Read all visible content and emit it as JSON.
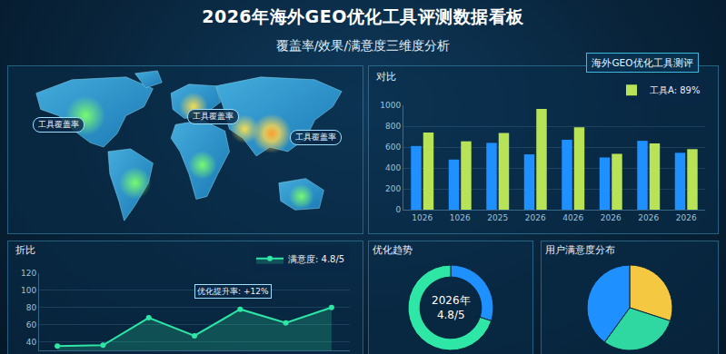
{
  "header": {
    "title": "2026年海外GEO优化工具评测数据看板",
    "subtitle": "覆盖率/效果/满意度三维度分析",
    "tag": "海外GEO优化工具测评"
  },
  "map": {
    "labels": [
      "工具覆盖率",
      "工具覆盖率",
      "工具覆盖率"
    ]
  },
  "chart_data": [
    {
      "type": "bar",
      "title": "对比",
      "categories": [
        "1026",
        "1026",
        "2025",
        "2026",
        "4026",
        "2026",
        "2026",
        "2026"
      ],
      "series": [
        {
          "color": "#1e90ff",
          "values": [
            610,
            480,
            640,
            530,
            670,
            500,
            660,
            545
          ]
        },
        {
          "name": "工具A: 89%",
          "color": "#b8e356",
          "values": [
            740,
            655,
            735,
            965,
            790,
            535,
            635,
            580
          ]
        }
      ],
      "ylim": [
        0,
        1000
      ],
      "yticks": [
        0,
        200,
        400,
        600,
        800,
        1000
      ],
      "grid": true,
      "legend": "upper right"
    },
    {
      "type": "line",
      "title": "折比",
      "categories": [
        null,
        null,
        null,
        null,
        null,
        null,
        null
      ],
      "series": [
        {
          "name": "满意度: 4.8/5",
          "color": "#2ee6a6",
          "values": [
            35,
            36,
            68,
            47,
            78,
            62,
            80
          ]
        }
      ],
      "ylim": [
        30,
        120
      ],
      "yticks": [
        40,
        60,
        80,
        100,
        120
      ],
      "grid": true,
      "legend": "upper right",
      "tick_labels": "y",
      "marker": "circle",
      "annotations": [
        {
          "text": "优化提升率: +12%",
          "point": 4
        }
      ]
    },
    {
      "type": "donut",
      "title": "优化趋势",
      "values": [
        30,
        70
      ],
      "colors": [
        "#1e90ff",
        "#2ee6a6"
      ],
      "center_text": [
        "2026年",
        "4.8/5"
      ]
    },
    {
      "type": "pie",
      "title": "用户满意度分布",
      "values": [
        30,
        30,
        40
      ],
      "colors": [
        "#f5c842",
        "#2ed8a0",
        "#1e90ff"
      ]
    }
  ]
}
